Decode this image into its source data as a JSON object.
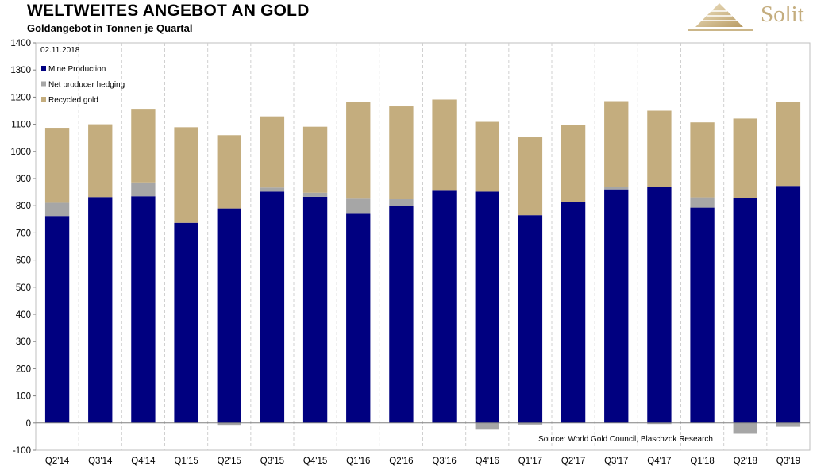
{
  "header": {
    "title": "WELTWEITES ANGEBOT AN GOLD",
    "subtitle": "Goldangebot in Tonnen je Quartal",
    "brand": "Solit"
  },
  "chart_data": {
    "type": "bar",
    "stacked": true,
    "title": "WELTWEITES ANGEBOT AN GOLD",
    "subtitle": "Goldangebot in Tonnen je Quartal",
    "date_label": "02.11.2018",
    "source": "Source: World Gold Council, Blaschzok Research",
    "xlabel": "",
    "ylabel": "",
    "ylim": [
      -100,
      1400
    ],
    "yticks": [
      -100,
      0,
      100,
      200,
      300,
      400,
      500,
      600,
      700,
      800,
      900,
      1000,
      1100,
      1200,
      1300,
      1400
    ],
    "legend_position": "top-left",
    "grid": true,
    "categories": [
      "Q2'14",
      "Q3'14",
      "Q4'14",
      "Q1'15",
      "Q2'15",
      "Q3'15",
      "Q4'15",
      "Q1'16",
      "Q2'16",
      "Q3'16",
      "Q4'16",
      "Q1'17",
      "Q2'17",
      "Q3'17",
      "Q4'17",
      "Q1'18",
      "Q2'18",
      "Q3'19"
    ],
    "series": [
      {
        "name": "Mine Production",
        "color": "#000080",
        "values": [
          762,
          832,
          835,
          737,
          790,
          852,
          833,
          773,
          798,
          858,
          852,
          765,
          815,
          860,
          870,
          793,
          828,
          873
        ]
      },
      {
        "name": "Net producer hedging",
        "color": "#a6a6a6",
        "values": [
          49,
          0,
          51,
          0,
          -7,
          15,
          15,
          53,
          26,
          0,
          -22,
          -6,
          0,
          10,
          -4,
          38,
          -40,
          -14
        ]
      },
      {
        "name": "Recycled gold",
        "color": "#c4ad7e",
        "values": [
          276,
          268,
          271,
          352,
          270,
          262,
          243,
          356,
          342,
          333,
          257,
          287,
          283,
          315,
          280,
          276,
          293,
          309
        ]
      }
    ]
  }
}
